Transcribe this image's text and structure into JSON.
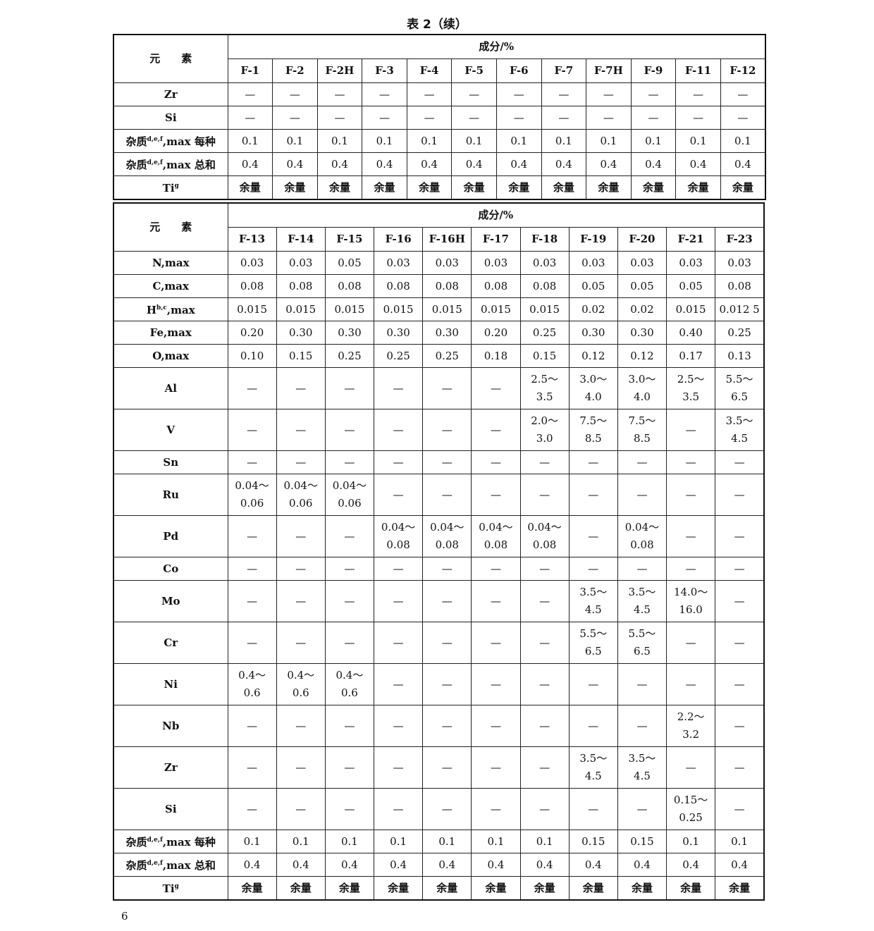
{
  "caption": "表 2（续）",
  "page_number": "6",
  "tables": [
    {
      "element_header": "元　　素",
      "composition_header": "成分/%",
      "columns": [
        "F-1",
        "F-2",
        "F-2H",
        "F-3",
        "F-4",
        "F-5",
        "F-6",
        "F-7",
        "F-7H",
        "F-9",
        "F-11",
        "F-12"
      ],
      "rows": [
        {
          "label": "Zr",
          "sup": "",
          "suffix": "",
          "tall": false,
          "cells": [
            "—",
            "—",
            "—",
            "—",
            "—",
            "—",
            "—",
            "—",
            "—",
            "—",
            "—",
            "—"
          ]
        },
        {
          "label": "Si",
          "sup": "",
          "suffix": "",
          "tall": false,
          "cells": [
            "—",
            "—",
            "—",
            "—",
            "—",
            "—",
            "—",
            "—",
            "—",
            "—",
            "—",
            "—"
          ]
        },
        {
          "label": "杂质",
          "sup": "d,e,f",
          "suffix": ",max 每种",
          "tall": false,
          "cells": [
            "0.1",
            "0.1",
            "0.1",
            "0.1",
            "0.1",
            "0.1",
            "0.1",
            "0.1",
            "0.1",
            "0.1",
            "0.1",
            "0.1"
          ]
        },
        {
          "label": "杂质",
          "sup": "d,e,f",
          "suffix": ",max 总和",
          "tall": false,
          "cells": [
            "0.4",
            "0.4",
            "0.4",
            "0.4",
            "0.4",
            "0.4",
            "0.4",
            "0.4",
            "0.4",
            "0.4",
            "0.4",
            "0.4"
          ]
        },
        {
          "label": "Ti",
          "sup": "g",
          "suffix": "",
          "tall": false,
          "bold": true,
          "cells": [
            "余量",
            "余量",
            "余量",
            "余量",
            "余量",
            "余量",
            "余量",
            "余量",
            "余量",
            "余量",
            "余量",
            "余量"
          ]
        }
      ]
    },
    {
      "element_header": "元　　素",
      "composition_header": "成分/%",
      "columns": [
        "F-13",
        "F-14",
        "F-15",
        "F-16",
        "F-16H",
        "F-17",
        "F-18",
        "F-19",
        "F-20",
        "F-21",
        "F-23"
      ],
      "rows": [
        {
          "label": "N",
          "sup": "",
          "suffix": ",max",
          "tall": false,
          "cells": [
            "0.03",
            "0.03",
            "0.05",
            "0.03",
            "0.03",
            "0.03",
            "0.03",
            "0.03",
            "0.03",
            "0.03",
            "0.03"
          ]
        },
        {
          "label": "C",
          "sup": "",
          "suffix": ",max",
          "tall": false,
          "cells": [
            "0.08",
            "0.08",
            "0.08",
            "0.08",
            "0.08",
            "0.08",
            "0.08",
            "0.05",
            "0.05",
            "0.05",
            "0.08"
          ]
        },
        {
          "label": "H",
          "sup": "b,c",
          "suffix": ",max",
          "tall": false,
          "cells": [
            "0.015",
            "0.015",
            "0.015",
            "0.015",
            "0.015",
            "0.015",
            "0.015",
            "0.02",
            "0.02",
            "0.015",
            "0.012 5"
          ]
        },
        {
          "label": "Fe",
          "sup": "",
          "suffix": ",max",
          "tall": false,
          "cells": [
            "0.20",
            "0.30",
            "0.30",
            "0.30",
            "0.30",
            "0.20",
            "0.25",
            "0.30",
            "0.30",
            "0.40",
            "0.25"
          ]
        },
        {
          "label": "O",
          "sup": "",
          "suffix": ",max",
          "tall": false,
          "cells": [
            "0.10",
            "0.15",
            "0.25",
            "0.25",
            "0.25",
            "0.18",
            "0.15",
            "0.12",
            "0.12",
            "0.17",
            "0.13"
          ]
        },
        {
          "label": "Al",
          "sup": "",
          "suffix": "",
          "tall": true,
          "cells": [
            "—",
            "—",
            "—",
            "—",
            "—",
            "—",
            "2.5～\n3.5",
            "3.0～\n4.0",
            "3.0～\n4.0",
            "2.5～\n3.5",
            "5.5～\n6.5"
          ]
        },
        {
          "label": "V",
          "sup": "",
          "suffix": "",
          "tall": true,
          "cells": [
            "—",
            "—",
            "—",
            "—",
            "—",
            "—",
            "2.0～\n3.0",
            "7.5～\n8.5",
            "7.5～\n8.5",
            "—",
            "3.5～\n4.5"
          ]
        },
        {
          "label": "Sn",
          "sup": "",
          "suffix": "",
          "tall": false,
          "cells": [
            "—",
            "—",
            "—",
            "—",
            "—",
            "—",
            "—",
            "—",
            "—",
            "—",
            "—"
          ]
        },
        {
          "label": "Ru",
          "sup": "",
          "suffix": "",
          "tall": true,
          "cells": [
            "0.04～\n0.06",
            "0.04～\n0.06",
            "0.04～\n0.06",
            "—",
            "—",
            "—",
            "—",
            "—",
            "—",
            "—",
            "—"
          ]
        },
        {
          "label": "Pd",
          "sup": "",
          "suffix": "",
          "tall": true,
          "cells": [
            "—",
            "—",
            "—",
            "0.04～\n0.08",
            "0.04～\n0.08",
            "0.04～\n0.08",
            "0.04～\n0.08",
            "—",
            "0.04～\n0.08",
            "—",
            "—"
          ]
        },
        {
          "label": "Co",
          "sup": "",
          "suffix": "",
          "tall": false,
          "cells": [
            "—",
            "—",
            "—",
            "—",
            "—",
            "—",
            "—",
            "—",
            "—",
            "—",
            "—"
          ]
        },
        {
          "label": "Mo",
          "sup": "",
          "suffix": "",
          "tall": true,
          "cells": [
            "—",
            "—",
            "—",
            "—",
            "—",
            "—",
            "—",
            "3.5～\n4.5",
            "3.5～\n4.5",
            "14.0～\n16.0",
            "—"
          ]
        },
        {
          "label": "Cr",
          "sup": "",
          "suffix": "",
          "tall": true,
          "cells": [
            "—",
            "—",
            "—",
            "—",
            "—",
            "—",
            "—",
            "5.5～\n6.5",
            "5.5～\n6.5",
            "—",
            "—"
          ]
        },
        {
          "label": "Ni",
          "sup": "",
          "suffix": "",
          "tall": true,
          "cells": [
            "0.4～\n0.6",
            "0.4～\n0.6",
            "0.4～\n0.6",
            "—",
            "—",
            "—",
            "—",
            "—",
            "—",
            "—",
            "—"
          ]
        },
        {
          "label": "Nb",
          "sup": "",
          "suffix": "",
          "tall": true,
          "cells": [
            "—",
            "—",
            "—",
            "—",
            "—",
            "—",
            "—",
            "—",
            "—",
            "2.2～\n3.2",
            "—"
          ]
        },
        {
          "label": "Zr",
          "sup": "",
          "suffix": "",
          "tall": true,
          "cells": [
            "—",
            "—",
            "—",
            "—",
            "—",
            "—",
            "—",
            "3.5～\n4.5",
            "3.5～\n4.5",
            "—",
            "—"
          ]
        },
        {
          "label": "Si",
          "sup": "",
          "suffix": "",
          "tall": true,
          "cells": [
            "—",
            "—",
            "—",
            "—",
            "—",
            "—",
            "—",
            "—",
            "—",
            "0.15～\n0.25",
            "—"
          ]
        },
        {
          "label": "杂质",
          "sup": "d,e,f",
          "suffix": ",max 每种",
          "tall": false,
          "cells": [
            "0.1",
            "0.1",
            "0.1",
            "0.1",
            "0.1",
            "0.1",
            "0.1",
            "0.15",
            "0.15",
            "0.1",
            "0.1"
          ]
        },
        {
          "label": "杂质",
          "sup": "d,e,f",
          "suffix": ",max 总和",
          "tall": false,
          "cells": [
            "0.4",
            "0.4",
            "0.4",
            "0.4",
            "0.4",
            "0.4",
            "0.4",
            "0.4",
            "0.4",
            "0.4",
            "0.4"
          ]
        },
        {
          "label": "Ti",
          "sup": "g",
          "suffix": "",
          "tall": false,
          "bold": true,
          "cells": [
            "余量",
            "余量",
            "余量",
            "余量",
            "余量",
            "余量",
            "余量",
            "余量",
            "余量",
            "余量",
            "余量"
          ]
        }
      ]
    }
  ]
}
